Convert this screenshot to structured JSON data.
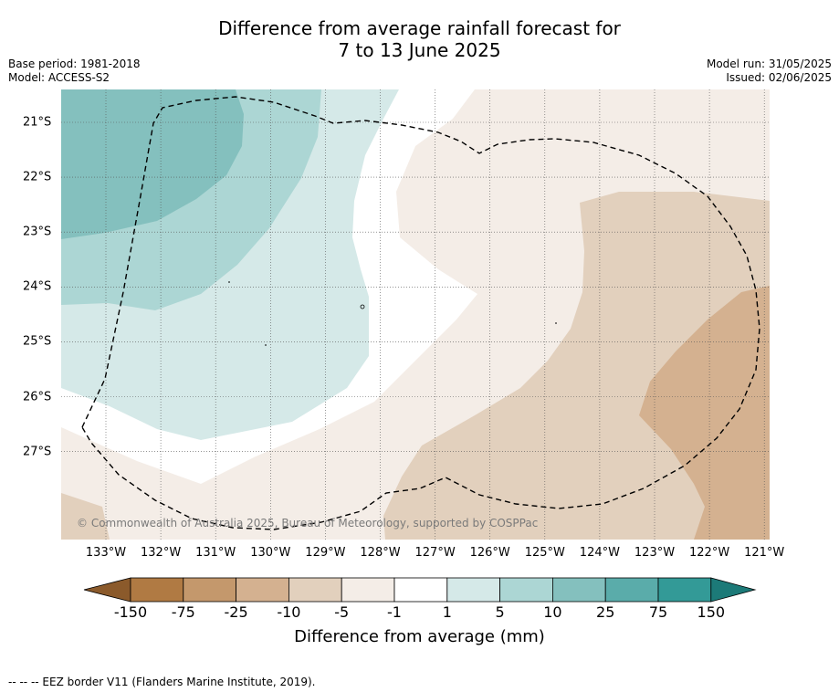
{
  "title_line1": "Difference from average rainfall forecast for",
  "title_line2": "7 to 13 June 2025",
  "base_period": "Base period: 1981-2018",
  "model": "Model: ACCESS-S2",
  "model_run": "Model run: 31/05/2025",
  "issued": "Issued: 02/06/2025",
  "copyright": "© Commonwealth of Australia 2025, Bureau of Meteorology, supported by COSPPac",
  "lon_ticks": [
    "133°W",
    "132°W",
    "131°W",
    "130°W",
    "129°W",
    "128°W",
    "127°W",
    "126°W",
    "125°W",
    "124°W",
    "123°W",
    "122°W",
    "121°W"
  ],
  "lat_ticks": [
    "21°S",
    "22°S",
    "23°S",
    "24°S",
    "25°S",
    "26°S",
    "27°S"
  ],
  "colorbar": {
    "labels": [
      "-150",
      "-75",
      "-25",
      "-10",
      "-5",
      "-1",
      "1",
      "5",
      "10",
      "25",
      "75",
      "150"
    ],
    "colors": [
      "#8b5a2b",
      "#b07a43",
      "#c4986c",
      "#d4b190",
      "#e2d0bd",
      "#f4ede7",
      "#ffffff",
      "#d5e9e8",
      "#acd6d4",
      "#84c0be",
      "#5aacaa",
      "#339a97",
      "#1c7a78"
    ],
    "title": "Difference from average (mm)"
  },
  "footer": "--  --  -- EEZ border V11 (Flanders Marine Institute, 2019)."
}
